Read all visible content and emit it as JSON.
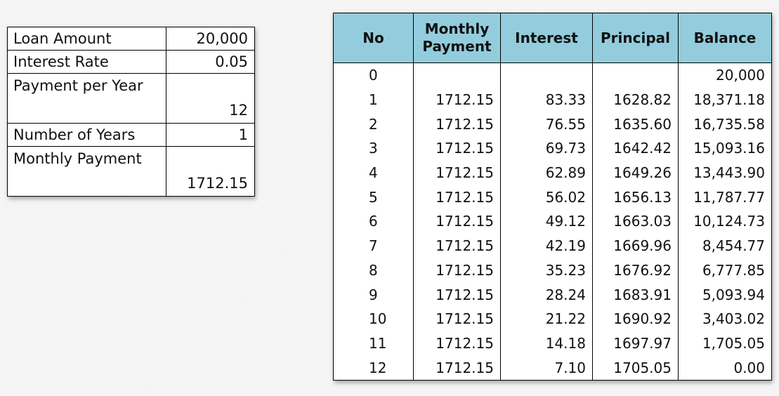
{
  "params": [
    {
      "label": "Loan Amount",
      "value": "20,000"
    },
    {
      "label": "Interest Rate",
      "value": "0.05"
    },
    {
      "label": "Payment per Year",
      "value": "12"
    },
    {
      "label": "Number of Years",
      "value": "1"
    },
    {
      "label": "Monthly Payment",
      "value": "1712.15"
    }
  ],
  "amortization": {
    "header_color": "#93cddd",
    "headers": [
      "No",
      "Monthly Payment",
      "Interest",
      "Principal",
      "Balance"
    ],
    "rows": [
      [
        "0",
        "",
        "",
        "",
        "20,000"
      ],
      [
        "1",
        "1712.15",
        "83.33",
        "1628.82",
        "18,371.18"
      ],
      [
        "2",
        "1712.15",
        "76.55",
        "1635.60",
        "16,735.58"
      ],
      [
        "3",
        "1712.15",
        "69.73",
        "1642.42",
        "15,093.16"
      ],
      [
        "4",
        "1712.15",
        "62.89",
        "1649.26",
        "13,443.90"
      ],
      [
        "5",
        "1712.15",
        "56.02",
        "1656.13",
        "11,787.77"
      ],
      [
        "6",
        "1712.15",
        "49.12",
        "1663.03",
        "10,124.73"
      ],
      [
        "7",
        "1712.15",
        "42.19",
        "1669.96",
        "8,454.77"
      ],
      [
        "8",
        "1712.15",
        "35.23",
        "1676.92",
        "6,777.85"
      ],
      [
        "9",
        "1712.15",
        "28.24",
        "1683.91",
        "5,093.94"
      ],
      [
        "10",
        "1712.15",
        "21.22",
        "1690.92",
        "3,403.02"
      ],
      [
        "11",
        "1712.15",
        "14.18",
        "1697.97",
        "1,705.05"
      ],
      [
        "12",
        "1712.15",
        "7.10",
        "1705.05",
        "0.00"
      ]
    ]
  }
}
